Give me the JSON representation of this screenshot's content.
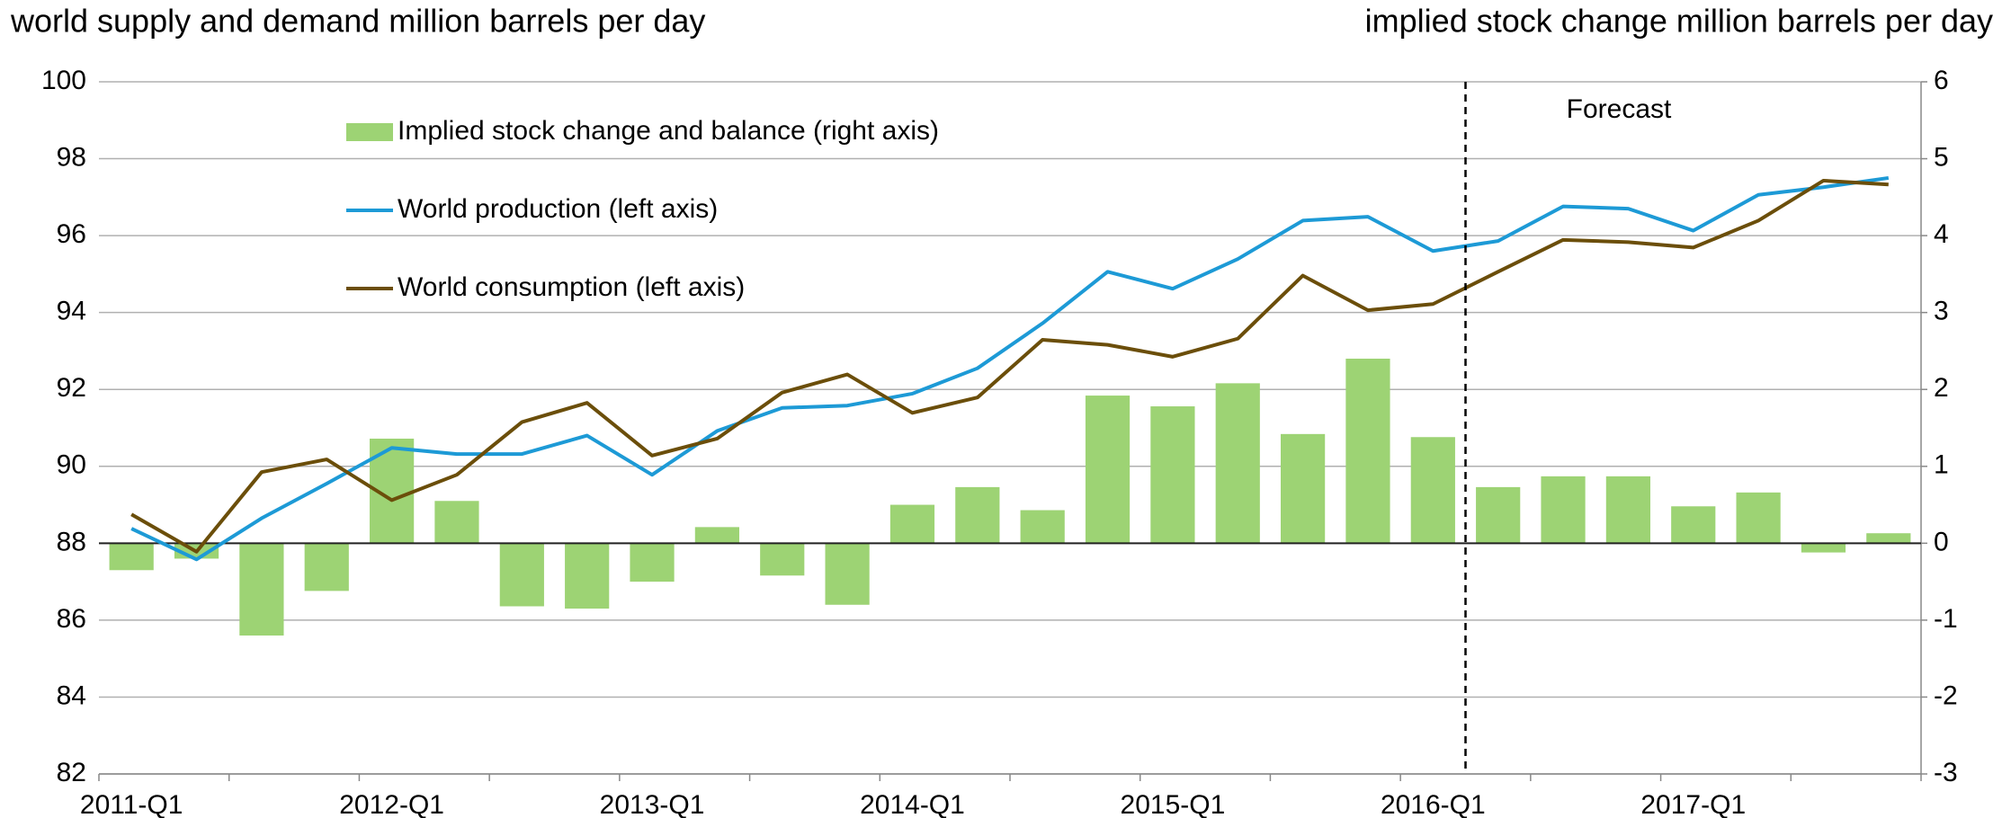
{
  "chart_data": {
    "type": "combo",
    "y_label": "world supply and demand million barrels per day",
    "y2_label": "implied stock change million barrels per day",
    "annotation": "Forecast",
    "categories": [
      "2011-Q1",
      null,
      null,
      null,
      "2012-Q1",
      null,
      null,
      null,
      "2013-Q1",
      null,
      null,
      null,
      "2014-Q1",
      null,
      null,
      null,
      "2015-Q1",
      null,
      null,
      null,
      "2016-Q1",
      null,
      null,
      null,
      "2017-Q1",
      null,
      null,
      null
    ],
    "series": [
      {
        "name": "Implied stock change and balance (right axis)",
        "type": "bar",
        "axis": "y2",
        "color": "#9dd374",
        "values": [
          -0.35,
          -0.2,
          -1.2,
          -0.62,
          1.36,
          0.55,
          -0.82,
          -0.85,
          -0.5,
          0.21,
          -0.42,
          -0.8,
          0.5,
          0.73,
          0.43,
          1.92,
          1.78,
          2.08,
          1.42,
          2.4,
          1.38,
          0.73,
          0.87,
          0.87,
          0.48,
          0.66,
          -0.12,
          0.13
        ]
      },
      {
        "name": "World production (left axis)",
        "type": "line",
        "axis": "y",
        "color": "#1d9ad6",
        "values": [
          88.38,
          87.58,
          88.65,
          89.55,
          90.48,
          90.32,
          90.32,
          90.8,
          89.78,
          90.92,
          91.52,
          91.58,
          91.89,
          92.55,
          93.72,
          95.06,
          94.62,
          95.39,
          96.39,
          96.49,
          95.6,
          95.86,
          96.76,
          96.7,
          96.13,
          97.06,
          97.26,
          97.5
        ]
      },
      {
        "name": "World consumption (left axis)",
        "type": "line",
        "axis": "y",
        "color": "#6b4e0a",
        "values": [
          88.75,
          87.78,
          89.85,
          90.18,
          89.12,
          89.78,
          91.15,
          91.65,
          90.28,
          90.72,
          91.92,
          92.39,
          91.39,
          91.79,
          93.29,
          93.16,
          92.85,
          93.32,
          94.96,
          94.06,
          94.22,
          95.06,
          95.89,
          95.83,
          95.69,
          96.39,
          97.43,
          97.33
        ]
      }
    ],
    "ylim": [
      82,
      100
    ],
    "yticks": [
      82,
      84,
      86,
      88,
      90,
      92,
      94,
      96,
      98,
      100
    ],
    "y2lim": [
      -3,
      6
    ],
    "y2ticks": [
      -3,
      -2,
      -1,
      0,
      1,
      2,
      3,
      4,
      5,
      6
    ],
    "grid": true
  }
}
